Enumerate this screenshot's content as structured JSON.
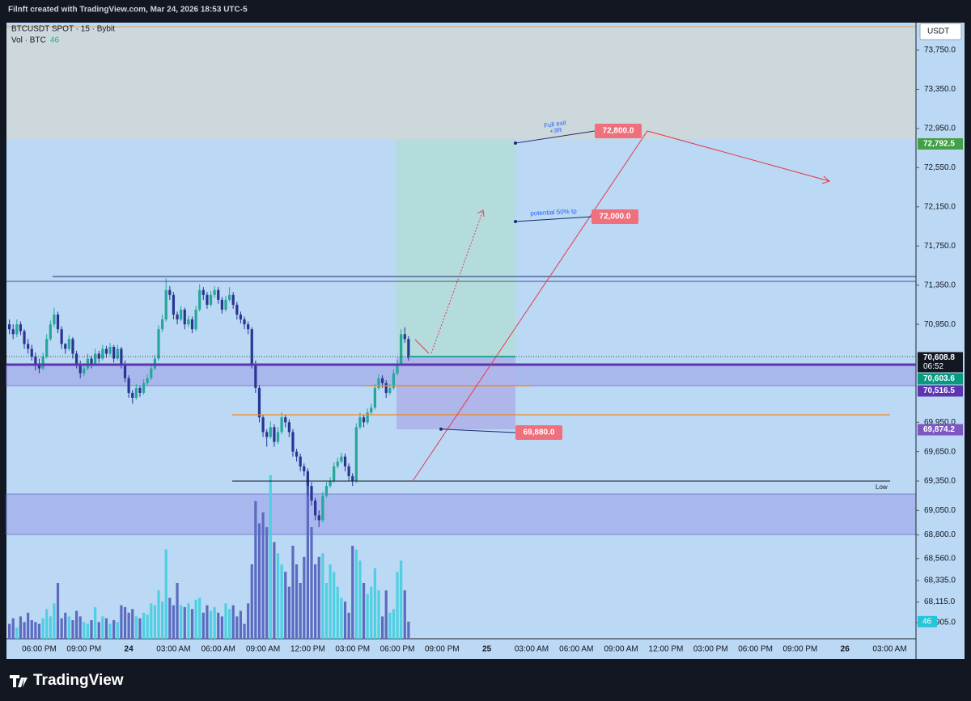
{
  "header": {
    "credit": "Filnft created with TradingView.com, Mar 24, 2026 18:53 UTC-5"
  },
  "chart_data": {
    "type": "candlestick",
    "symbol": "BTCUSDT SPOT · 15 · Bybit",
    "volume_title": "Vol · BTC",
    "currency": "USDT",
    "time_labels": [
      "06:00 PM",
      "09:00 PM",
      "24",
      "03:00 AM",
      "06:00 AM",
      "09:00 AM",
      "12:00 PM",
      "03:00 PM",
      "06:00 PM",
      "09:00 PM",
      "25",
      "03:00 AM",
      "06:00 AM",
      "09:00 AM",
      "12:00 PM",
      "03:00 PM",
      "06:00 PM",
      "09:00 PM",
      "26",
      "03:00 AM"
    ],
    "candles": [
      [
        70950,
        71000,
        70850,
        70900
      ],
      [
        70900,
        70950,
        70800,
        70850
      ],
      [
        70850,
        71000,
        70820,
        70950
      ],
      [
        70950,
        70980,
        70840,
        70880
      ],
      [
        70880,
        70900,
        70700,
        70750
      ],
      [
        70750,
        70800,
        70650,
        70700
      ],
      [
        70700,
        70740,
        70580,
        70620
      ],
      [
        70620,
        70660,
        70480,
        70550
      ],
      [
        70550,
        70600,
        70450,
        70500
      ],
      [
        70500,
        70660,
        70480,
        70620
      ],
      [
        70620,
        70850,
        70600,
        70800
      ],
      [
        70800,
        70990,
        70780,
        70950
      ],
      [
        70950,
        71120,
        70920,
        71050
      ],
      [
        71050,
        71080,
        70860,
        70900
      ],
      [
        70900,
        70930,
        70700,
        70750
      ],
      [
        70750,
        70760,
        70650,
        70700
      ],
      [
        70700,
        70840,
        70680,
        70800
      ],
      [
        70800,
        70820,
        70600,
        70650
      ],
      [
        70650,
        70680,
        70500,
        70550
      ],
      [
        70550,
        70580,
        70400,
        70450
      ],
      [
        70450,
        70540,
        70420,
        70500
      ],
      [
        70500,
        70650,
        70480,
        70600
      ],
      [
        70600,
        70630,
        70500,
        70550
      ],
      [
        70550,
        70700,
        70530,
        70650
      ],
      [
        70650,
        70680,
        70560,
        70600
      ],
      [
        70600,
        70740,
        70580,
        70700
      ],
      [
        70700,
        70730,
        70610,
        70650
      ],
      [
        70650,
        70760,
        70630,
        70720
      ],
      [
        70720,
        70740,
        70560,
        70600
      ],
      [
        70600,
        70740,
        70580,
        70700
      ],
      [
        70700,
        70720,
        70500,
        70550
      ],
      [
        70550,
        70580,
        70360,
        70400
      ],
      [
        70400,
        70430,
        70200,
        70250
      ],
      [
        70250,
        70280,
        70140,
        70200
      ],
      [
        70200,
        70340,
        70180,
        70300
      ],
      [
        70300,
        70320,
        70210,
        70250
      ],
      [
        70250,
        70390,
        70230,
        70350
      ],
      [
        70350,
        70440,
        70330,
        70400
      ],
      [
        70400,
        70540,
        70380,
        70500
      ],
      [
        70500,
        70640,
        70480,
        70600
      ],
      [
        70600,
        70940,
        70580,
        70900
      ],
      [
        70900,
        71050,
        70870,
        71000
      ],
      [
        71000,
        71420,
        70980,
        71300
      ],
      [
        71300,
        71340,
        71200,
        71250
      ],
      [
        71250,
        71280,
        71000,
        71050
      ],
      [
        71050,
        71080,
        70950,
        71000
      ],
      [
        71000,
        71140,
        70980,
        71100
      ],
      [
        71100,
        71120,
        70900,
        70950
      ],
      [
        70950,
        71040,
        70920,
        71000
      ],
      [
        71000,
        71030,
        70860,
        70900
      ],
      [
        70900,
        71140,
        70880,
        71100
      ],
      [
        71100,
        71360,
        71080,
        71300
      ],
      [
        71300,
        71330,
        71200,
        71250
      ],
      [
        71250,
        71280,
        71110,
        71150
      ],
      [
        71150,
        71290,
        71130,
        71250
      ],
      [
        71250,
        71340,
        71220,
        71300
      ],
      [
        71300,
        71330,
        71160,
        71200
      ],
      [
        71200,
        71230,
        71060,
        71100
      ],
      [
        71100,
        71240,
        71080,
        71200
      ],
      [
        71200,
        71330,
        71180,
        71250
      ],
      [
        71250,
        71280,
        71110,
        71150
      ],
      [
        71150,
        71180,
        71000,
        71050
      ],
      [
        71050,
        71080,
        70960,
        71000
      ],
      [
        71000,
        71030,
        70900,
        70950
      ],
      [
        70950,
        70980,
        70850,
        70900
      ],
      [
        70900,
        70920,
        70500,
        70550
      ],
      [
        70550,
        70580,
        70250,
        70300
      ],
      [
        70300,
        70330,
        69950,
        70000
      ],
      [
        70000,
        70030,
        69800,
        69850
      ],
      [
        69850,
        69880,
        69700,
        69800
      ],
      [
        69800,
        69960,
        69780,
        69900
      ],
      [
        69900,
        69930,
        69700,
        69750
      ],
      [
        69750,
        69900,
        69730,
        69850
      ],
      [
        69850,
        70050,
        69830,
        70000
      ],
      [
        70000,
        70030,
        69900,
        69950
      ],
      [
        69950,
        69980,
        69800,
        69850
      ],
      [
        69850,
        69880,
        69600,
        69650
      ],
      [
        69650,
        69680,
        69550,
        69600
      ],
      [
        69600,
        69630,
        69450,
        69500
      ],
      [
        69500,
        69530,
        69400,
        69450
      ],
      [
        69450,
        69480,
        69200,
        69300
      ],
      [
        69300,
        69340,
        69100,
        69150
      ],
      [
        69150,
        69180,
        68950,
        69000
      ],
      [
        69000,
        69050,
        68880,
        68950
      ],
      [
        68950,
        69240,
        68930,
        69200
      ],
      [
        69200,
        69340,
        69180,
        69300
      ],
      [
        69300,
        69390,
        69280,
        69350
      ],
      [
        69350,
        69540,
        69330,
        69500
      ],
      [
        69500,
        69590,
        69480,
        69550
      ],
      [
        69550,
        69640,
        69530,
        69600
      ],
      [
        69600,
        69630,
        69450,
        69500
      ],
      [
        69500,
        69530,
        69350,
        69400
      ],
      [
        69400,
        69430,
        69300,
        69350
      ],
      [
        69350,
        69940,
        69330,
        69900
      ],
      [
        69900,
        70050,
        69880,
        70000
      ],
      [
        70000,
        70030,
        69900,
        69950
      ],
      [
        69950,
        70090,
        69930,
        70050
      ],
      [
        70050,
        70140,
        70030,
        70100
      ],
      [
        70100,
        70340,
        70080,
        70300
      ],
      [
        70300,
        70440,
        70280,
        70400
      ],
      [
        70400,
        70430,
        70300,
        70350
      ],
      [
        70350,
        70380,
        70200,
        70250
      ],
      [
        70250,
        70340,
        70230,
        70300
      ],
      [
        70300,
        70490,
        70280,
        70450
      ],
      [
        70450,
        70590,
        70430,
        70550
      ],
      [
        70550,
        70900,
        70530,
        70850
      ],
      [
        70850,
        70920,
        70760,
        70800
      ],
      [
        70800,
        70830,
        70580,
        70608.8
      ]
    ],
    "volume": [
      40,
      55,
      30,
      60,
      45,
      70,
      50,
      45,
      40,
      55,
      80,
      60,
      95,
      150,
      55,
      70,
      60,
      50,
      75,
      60,
      45,
      40,
      50,
      85,
      45,
      60,
      55,
      40,
      50,
      45,
      90,
      85,
      70,
      80,
      60,
      55,
      70,
      65,
      95,
      90,
      130,
      100,
      240,
      110,
      90,
      150,
      90,
      85,
      95,
      80,
      105,
      110,
      70,
      90,
      75,
      85,
      70,
      60,
      95,
      80,
      90,
      60,
      75,
      40,
      95,
      200,
      370,
      310,
      340,
      300,
      440,
      260,
      230,
      200,
      180,
      140,
      250,
      200,
      150,
      220,
      440,
      300,
      200,
      220,
      230,
      150,
      200,
      180,
      140,
      110,
      100,
      70,
      250,
      240,
      210,
      150,
      120,
      140,
      190,
      130,
      60,
      130,
      70,
      80,
      180,
      210,
      130,
      46
    ],
    "colors": {
      "up": "#26a69a",
      "down": "#283593",
      "volume_up": "#4dd0e1",
      "volume_down": "#5c6bc0"
    },
    "ylim": [
      67740,
      74014
    ],
    "vlim": [
      0,
      500
    ],
    "yticks": [
      {
        "value": 73750,
        "label": "73,750.0"
      },
      {
        "value": 73350,
        "label": "73,350.0"
      },
      {
        "value": 72950,
        "label": "72,950.0"
      },
      {
        "value": 72550,
        "label": "72,550.0"
      },
      {
        "value": 72150,
        "label": "72,150.0"
      },
      {
        "value": 71750,
        "label": "71,750.0"
      },
      {
        "value": 71350,
        "label": "71,350.0"
      },
      {
        "value": 70950,
        "label": "70,950.0"
      },
      {
        "value": 69950,
        "label": "69,950.0"
      },
      {
        "value": 69650,
        "label": "69,650.0"
      },
      {
        "value": 69350,
        "label": "69,350.0"
      },
      {
        "value": 69050,
        "label": "69,050.0"
      },
      {
        "value": 68800,
        "label": "68,800.0"
      },
      {
        "value": 68560,
        "label": "68,560.0"
      },
      {
        "value": 68335,
        "label": "68,335.0"
      },
      {
        "value": 68115,
        "label": "68,115.0"
      },
      {
        "value": 67905,
        "label": "67,905.0"
      }
    ],
    "price_labels": [
      {
        "value": 72792.5,
        "label": "72,792.5",
        "color": "#43a047"
      },
      {
        "value": 70608.8,
        "label": "70,608.8",
        "color": "#131722"
      },
      {
        "value": 70603.6,
        "label": "70,603.6",
        "color": "#089981"
      },
      {
        "value": 70516.5,
        "label": "70,516.5",
        "color": "#5e35b1"
      },
      {
        "value": 69874.2,
        "label": "69,874.2",
        "color": "#7e57c2"
      }
    ],
    "countdown": "06:52",
    "annotations": {
      "full_exit": "Full exit",
      "risk_reward": "+3R",
      "partial": "potential 50% tp",
      "low": "Low"
    },
    "targets": [
      {
        "value": 72800,
        "label": "72,800.0"
      },
      {
        "value": 72000,
        "label": "72,000.0"
      },
      {
        "value": 69880,
        "label": "69,880.0"
      }
    ]
  },
  "footer": {
    "brand": "TradingView"
  }
}
